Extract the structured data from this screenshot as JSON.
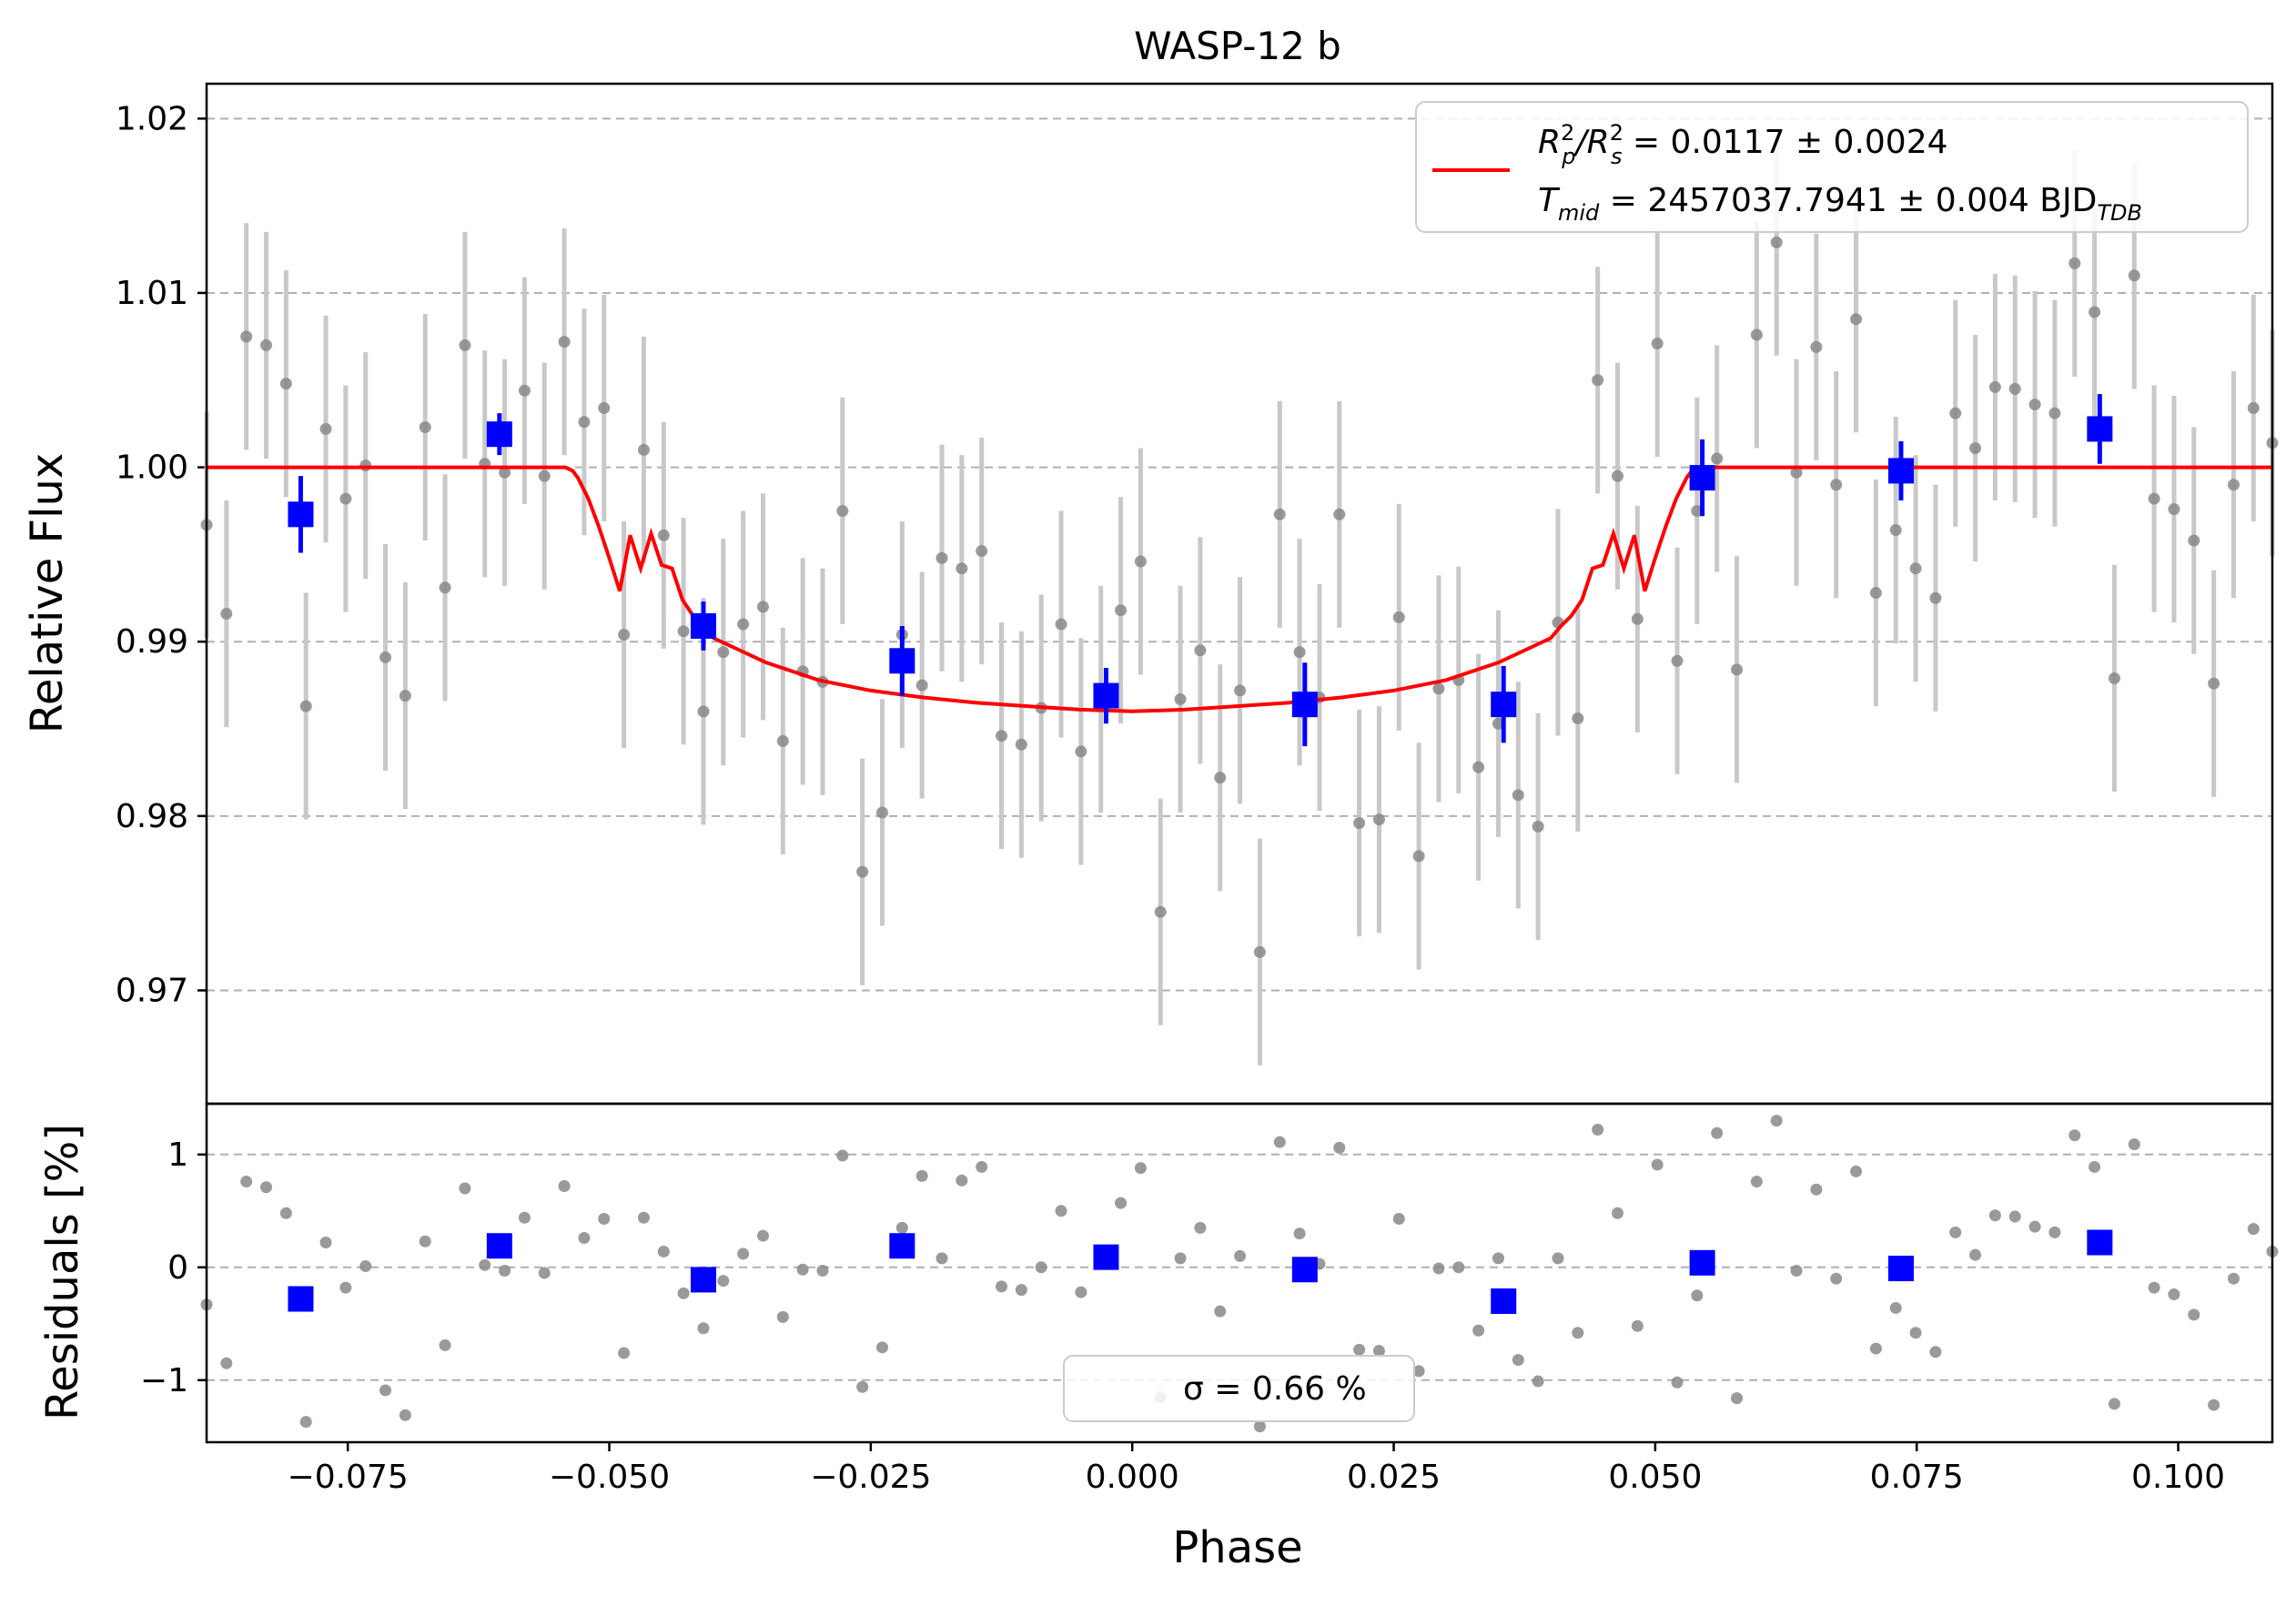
{
  "chart_data": [
    {
      "panel": "light-curve",
      "type": "scatter",
      "title": "WASP-12 b",
      "xlabel": "",
      "ylabel": "Relative Flux",
      "xlim": [
        -0.0885,
        0.109
      ],
      "ylim": [
        0.9635,
        1.022
      ],
      "yticks": [
        0.97,
        0.98,
        0.99,
        1.0,
        1.01,
        1.02
      ],
      "ytick_labels": [
        "0.97",
        "0.98",
        "0.99",
        "1.00",
        "1.01",
        "1.02"
      ],
      "grid": "horizontal dashed",
      "legend": {
        "placement": "top-right",
        "line_color": "#ff0000",
        "entry1": {
          "pre": "R",
          "pre_sup": "2",
          "pre_sub": "p",
          "slash": "/R",
          "slash_sup": "2",
          "slash_sub": "s",
          "rest": " = 0.0117 ± 0.0024"
        },
        "entry2": {
          "pre": "T",
          "pre_sub": "mid",
          "rest": " = 2457037.7941 ± 0.004 BJD",
          "rest_sub": "TDB"
        }
      },
      "colors": {
        "raw": "#888888",
        "raw_err": "#c8c8c8",
        "binned": "#0000ff",
        "model": "#ff0000"
      },
      "series": [
        {
          "name": "",
          "kind": "raw",
          "x": [
            -0.0885,
            -0.0866,
            -0.0847,
            -0.0828,
            -0.0809,
            -0.079,
            -0.0771,
            -0.0752,
            -0.0733,
            -0.0714,
            -0.0695,
            -0.0676,
            -0.0657,
            -0.0638,
            -0.0619,
            -0.06,
            -0.0581,
            -0.0562,
            -0.0543,
            -0.0524,
            -0.0505,
            -0.0486,
            -0.0467,
            -0.0448,
            -0.0429,
            -0.041,
            -0.0391,
            -0.0372,
            -0.0353,
            -0.0334,
            -0.0315,
            -0.0296,
            -0.0277,
            -0.0258,
            -0.0239,
            -0.022,
            -0.0201,
            -0.0182,
            -0.0163,
            -0.0144,
            -0.0125,
            -0.0106,
            -0.0087,
            -0.0068,
            -0.0049,
            -0.003,
            -0.0011,
            0.0008,
            0.0027,
            0.0046,
            0.0065,
            0.0084,
            0.0103,
            0.0122,
            0.0141,
            0.016,
            0.0179,
            0.0198,
            0.0217,
            0.0236,
            0.0255,
            0.0274,
            0.0293,
            0.0312,
            0.0331,
            0.035,
            0.0369,
            0.0388,
            0.0407,
            0.0426,
            0.0445,
            0.0464,
            0.0483,
            0.0502,
            0.0521,
            0.054,
            0.0559,
            0.0578,
            0.0597,
            0.0616,
            0.0635,
            0.0654,
            0.0673,
            0.0692,
            0.0711,
            0.073,
            0.0749,
            0.0768,
            0.0787,
            0.0806,
            0.0825,
            0.0844,
            0.0863,
            0.0882,
            0.0901,
            0.092,
            0.0939,
            0.0958,
            0.0977,
            0.0996,
            0.1015,
            0.1034,
            0.1053,
            0.1072,
            0.109
          ],
          "y": [
            0.9967,
            0.9916,
            1.0075,
            1.007,
            1.0048,
            0.9863,
            1.0022,
            0.9982,
            1.0001,
            0.9891,
            0.9869,
            1.0023,
            0.9931,
            1.007,
            1.0002,
            0.9997,
            1.0044,
            0.9995,
            1.0072,
            1.0026,
            1.0034,
            0.9904,
            1.001,
            0.9961,
            0.9906,
            0.986,
            0.9894,
            0.991,
            0.992,
            0.9843,
            0.9883,
            0.9877,
            0.9975,
            0.9768,
            0.9802,
            0.9904,
            0.9875,
            0.9948,
            0.9942,
            0.9952,
            0.9846,
            0.9841,
            0.9862,
            0.991,
            0.9837,
            0.9867,
            0.9918,
            0.9946,
            0.9745,
            0.9867,
            0.9895,
            0.9822,
            0.9872,
            0.9722,
            0.9973,
            0.9894,
            0.9868,
            0.9973,
            0.9796,
            0.9798,
            0.9914,
            0.9777,
            0.9873,
            0.9878,
            0.9828,
            0.9853,
            0.9812,
            0.9794,
            0.9911,
            0.9856,
            1.005,
            0.9995,
            0.9913,
            1.0071,
            0.9889,
            0.9975,
            1.0005,
            0.9884,
            1.0076,
            1.0129,
            0.9997,
            1.0069,
            0.999,
            1.0085,
            0.9928,
            0.9964,
            0.9942,
            0.9925,
            1.0031,
            1.0011,
            1.0046,
            1.0045,
            1.0036,
            1.0031,
            1.0117,
            1.0089,
            0.9879,
            1.011,
            0.9982,
            0.9976,
            0.9958,
            0.9876,
            0.999,
            1.0034,
            1.0014
          ],
          "yerr": [
            0.0065,
            0.0065,
            0.0065,
            0.0065,
            0.0065,
            0.0065,
            0.0065,
            0.0065,
            0.0065,
            0.0065,
            0.0065,
            0.0065,
            0.0065,
            0.0065,
            0.0065,
            0.0065,
            0.0065,
            0.0065,
            0.0065,
            0.0065,
            0.0065,
            0.0065,
            0.0065,
            0.0065,
            0.0065,
            0.0065,
            0.0065,
            0.0065,
            0.0065,
            0.0065,
            0.0065,
            0.0065,
            0.0065,
            0.0065,
            0.0065,
            0.0065,
            0.0065,
            0.0065,
            0.0065,
            0.0065,
            0.0065,
            0.0065,
            0.0065,
            0.0065,
            0.0065,
            0.0065,
            0.0065,
            0.0065,
            0.0065,
            0.0065,
            0.0065,
            0.0065,
            0.0065,
            0.0065,
            0.0065,
            0.0065,
            0.0065,
            0.0065,
            0.0065,
            0.0065,
            0.0065,
            0.0065,
            0.0065,
            0.0065,
            0.0065,
            0.0065,
            0.0065,
            0.0065,
            0.0065,
            0.0065,
            0.0065,
            0.0065,
            0.0065,
            0.0065,
            0.0065,
            0.0065,
            0.0065,
            0.0065,
            0.0065,
            0.0065,
            0.0065,
            0.0065,
            0.0065,
            0.0065,
            0.0065,
            0.0065,
            0.0065,
            0.0065,
            0.0065,
            0.0065,
            0.0065,
            0.0065,
            0.0065,
            0.0065,
            0.0065,
            0.0065,
            0.0065,
            0.0065,
            0.0065,
            0.0065,
            0.0065,
            0.0065,
            0.0065,
            0.0065,
            0.0065
          ]
        },
        {
          "name": "",
          "kind": "binned",
          "x": [
            -0.0795,
            -0.0605,
            -0.041,
            -0.022,
            -0.0025,
            0.0165,
            0.0355,
            0.0545,
            0.0735,
            0.0925
          ],
          "y": [
            0.9973,
            1.0019,
            0.9909,
            0.9889,
            0.9869,
            0.9864,
            0.9864,
            0.9994,
            0.9998,
            1.0022
          ],
          "yerr": [
            0.0022,
            0.0012,
            0.0014,
            0.002,
            0.0016,
            0.0024,
            0.0022,
            0.0022,
            0.0017,
            0.002
          ]
        },
        {
          "name": "",
          "kind": "model",
          "x": [
            -0.0885,
            -0.0542,
            -0.0535,
            -0.053,
            -0.052,
            -0.051,
            -0.05,
            -0.049,
            -0.048,
            -0.047,
            -0.046,
            -0.045,
            -0.044,
            -0.043,
            -0.042,
            -0.041,
            -0.04,
            -0.035,
            -0.03,
            -0.025,
            -0.02,
            -0.015,
            -0.01,
            -0.005,
            0,
            0.005,
            0.01,
            0.015,
            0.02,
            0.025,
            0.03,
            0.035,
            0.04,
            0.041,
            0.042,
            0.043,
            0.044,
            0.045,
            0.046,
            0.047,
            0.048,
            0.049,
            0.05,
            0.051,
            0.052,
            0.053,
            0.0535,
            0.0542,
            0.109
          ],
          "y": [
            1.0,
            1.0,
            0.9998,
            0.9994,
            0.9982,
            0.9966,
            0.9948,
            0.9929,
            0.9961,
            0.9942,
            0.9962,
            0.9944,
            0.9942,
            0.9924,
            0.9915,
            0.9909,
            0.9902,
            0.9888,
            0.9878,
            0.9872,
            0.9868,
            0.9865,
            0.9863,
            0.9861,
            0.986,
            0.9861,
            0.9863,
            0.9865,
            0.9868,
            0.9872,
            0.9878,
            0.9888,
            0.9902,
            0.9909,
            0.9915,
            0.9924,
            0.9942,
            0.9944,
            0.9962,
            0.9942,
            0.9961,
            0.9929,
            0.9948,
            0.9966,
            0.9982,
            0.9994,
            0.9998,
            1.0,
            1.0
          ]
        }
      ]
    },
    {
      "panel": "residuals",
      "type": "scatter",
      "title": "",
      "xlabel": "Phase",
      "ylabel": "Residuals [%]",
      "xlim": [
        -0.0885,
        0.109
      ],
      "ylim": [
        -1.55,
        1.45
      ],
      "xticks": [
        -0.075,
        -0.05,
        -0.025,
        0.0,
        0.025,
        0.05,
        0.075,
        0.1
      ],
      "xtick_labels": [
        "−0.075",
        "−0.050",
        "−0.025",
        "0.000",
        "0.025",
        "0.050",
        "0.075",
        "0.100"
      ],
      "yticks": [
        -1,
        0,
        1
      ],
      "ytick_labels": [
        "−1",
        "0",
        "1"
      ],
      "grid": "horizontal dashed",
      "legend": {
        "placement": "bottom-center",
        "label": "σ = 0.66 %"
      },
      "series": [
        {
          "name": "",
          "kind": "raw",
          "x": [
            -0.0885,
            -0.0866,
            -0.0847,
            -0.0828,
            -0.0809,
            -0.079,
            -0.0771,
            -0.0752,
            -0.0733,
            -0.0714,
            -0.0695,
            -0.0676,
            -0.0657,
            -0.0638,
            -0.0619,
            -0.06,
            -0.0581,
            -0.0562,
            -0.0543,
            -0.0524,
            -0.0505,
            -0.0486,
            -0.0467,
            -0.0448,
            -0.0429,
            -0.041,
            -0.0391,
            -0.0372,
            -0.0353,
            -0.0334,
            -0.0315,
            -0.0296,
            -0.0277,
            -0.0258,
            -0.0239,
            -0.022,
            -0.0201,
            -0.0182,
            -0.0163,
            -0.0144,
            -0.0125,
            -0.0106,
            -0.0087,
            -0.0068,
            -0.0049,
            -0.003,
            -0.0011,
            0.0008,
            0.0027,
            0.0046,
            0.0065,
            0.0084,
            0.0103,
            0.0122,
            0.0141,
            0.016,
            0.0179,
            0.0198,
            0.0217,
            0.0236,
            0.0255,
            0.0274,
            0.0293,
            0.0312,
            0.0331,
            0.035,
            0.0369,
            0.0388,
            0.0407,
            0.0426,
            0.0445,
            0.0464,
            0.0483,
            0.0502,
            0.0521,
            0.054,
            0.0559,
            0.0578,
            0.0597,
            0.0616,
            0.0635,
            0.0654,
            0.0673,
            0.0692,
            0.0711,
            0.073,
            0.0749,
            0.0768,
            0.0787,
            0.0806,
            0.0825,
            0.0844,
            0.0863,
            0.0882,
            0.0901,
            0.092,
            0.0939,
            0.0958,
            0.0977,
            0.0996,
            0.1015,
            0.1034,
            0.1053,
            0.1072,
            0.109
          ],
          "y": [
            -0.33,
            -0.85,
            0.76,
            0.71,
            0.48,
            -1.37,
            0.22,
            -0.18,
            0.01,
            -1.09,
            -1.31,
            0.23,
            -0.69,
            0.7,
            0.02,
            -0.03,
            0.44,
            -0.05,
            0.72,
            0.26,
            0.43,
            -0.76,
            0.44,
            0.14,
            -0.23,
            -0.54,
            -0.12,
            0.12,
            0.28,
            -0.44,
            -0.02,
            -0.03,
            0.99,
            -1.06,
            -0.71,
            0.35,
            0.81,
            0.08,
            0.77,
            0.89,
            -0.17,
            -0.2,
            0.0,
            0.5,
            -0.22,
            0.05,
            0.57,
            0.88,
            -1.15,
            0.08,
            0.35,
            -0.39,
            0.1,
            -1.41,
            1.11,
            0.3,
            0.03,
            1.06,
            -0.73,
            -0.74,
            0.43,
            -0.92,
            -0.01,
            -0.0,
            -0.56,
            0.08,
            -0.82,
            -1.01,
            0.08,
            -0.58,
            1.22,
            0.48,
            -0.52,
            0.91,
            -1.02,
            -0.25,
            1.19,
            -1.16,
            0.76,
            1.3,
            -0.03,
            0.69,
            -0.1,
            0.85,
            -0.72,
            -0.36,
            -0.58,
            -0.75,
            0.31,
            0.11,
            0.46,
            0.45,
            0.36,
            0.31,
            1.17,
            0.89,
            -1.21,
            1.09,
            -0.18,
            -0.24,
            -0.42,
            -1.22,
            -0.1,
            0.34,
            0.14
          ]
        },
        {
          "name": "",
          "kind": "binned",
          "x": [
            -0.0795,
            -0.0605,
            -0.041,
            -0.022,
            -0.0025,
            0.0165,
            0.0355,
            0.0545,
            0.0735,
            0.0925
          ],
          "y": [
            -0.28,
            0.19,
            -0.11,
            0.19,
            0.09,
            -0.02,
            -0.3,
            0.04,
            -0.01,
            0.22
          ]
        }
      ]
    }
  ]
}
